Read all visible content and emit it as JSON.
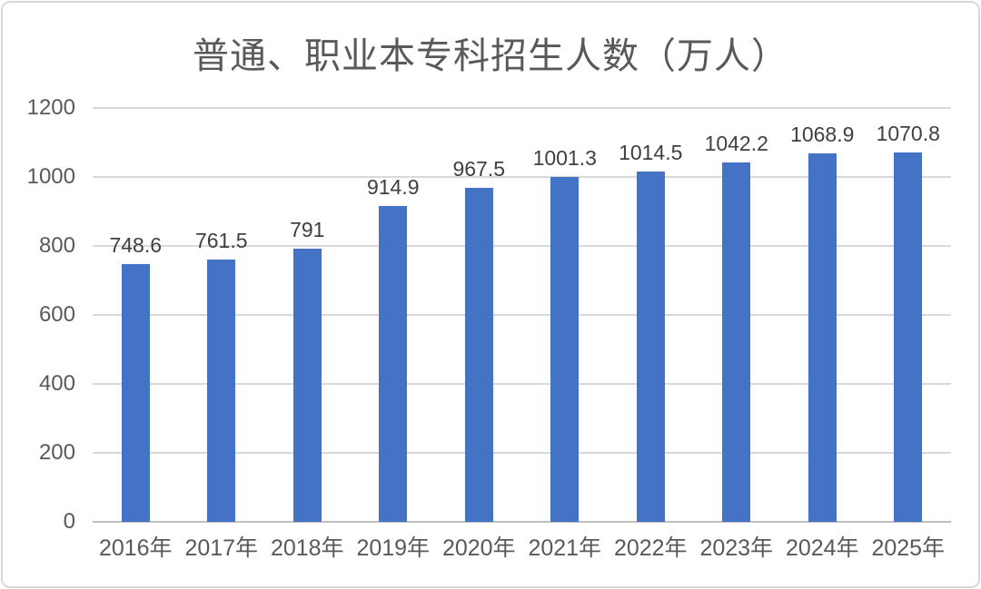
{
  "chart_data": {
    "type": "bar",
    "title": "普通、职业本专科招生人数（万人）",
    "categories": [
      "2016年",
      "2017年",
      "2018年",
      "2019年",
      "2020年",
      "2021年",
      "2022年",
      "2023年",
      "2024年",
      "2025年"
    ],
    "values": [
      748.6,
      761.5,
      791,
      914.9,
      967.5,
      1001.3,
      1014.5,
      1042.2,
      1068.9,
      1070.8
    ],
    "value_labels": [
      "748.6",
      "761.5",
      "791",
      "914.9",
      "967.5",
      "1001.3",
      "1014.5",
      "1042.2",
      "1068.9",
      "1070.8"
    ],
    "xlabel": "",
    "ylabel": "",
    "ylim": [
      0,
      1200
    ],
    "yticks": [
      0,
      200,
      400,
      600,
      800,
      1000,
      1200
    ],
    "grid": true,
    "legend": "none",
    "colors": {
      "bar": "#4472C4",
      "gridline": "#d9d9d9",
      "axis_line": "#bfbfbf",
      "tick_label": "#595959",
      "data_label": "#404040",
      "title": "#595959",
      "card_border": "#d9d9d9",
      "background": "#ffffff"
    }
  }
}
